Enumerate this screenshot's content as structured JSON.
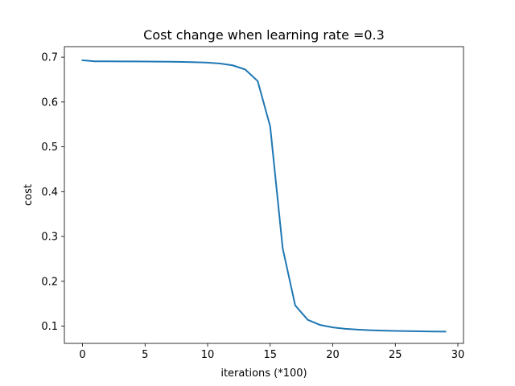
{
  "chart_data": {
    "type": "line",
    "title": "Cost change when learning rate =0.3",
    "xlabel": "iterations (*100)",
    "ylabel": "cost",
    "xlim": [
      -1.45,
      30.45
    ],
    "ylim": [
      0.0615,
      0.7235
    ],
    "x_ticks": [
      0,
      5,
      10,
      15,
      20,
      25,
      30
    ],
    "y_ticks": [
      0.1,
      0.2,
      0.3,
      0.4,
      0.5,
      0.6,
      0.7
    ],
    "grid": false,
    "line_color": "#1f77b4",
    "series": [
      {
        "x": [
          0,
          1,
          2,
          3,
          4,
          5,
          6,
          7,
          8,
          9,
          10,
          11,
          12,
          13,
          14,
          15,
          16,
          17,
          18,
          19,
          20,
          21,
          22,
          23,
          24,
          25,
          26,
          27,
          28,
          29
        ],
        "values": [
          0.693,
          0.6908,
          0.6907,
          0.6906,
          0.6905,
          0.6903,
          0.6901,
          0.6898,
          0.6894,
          0.6888,
          0.6878,
          0.6858,
          0.6818,
          0.6726,
          0.6467,
          0.5455,
          0.2735,
          0.1462,
          0.1141,
          0.1025,
          0.0971,
          0.0941,
          0.0922,
          0.0909,
          0.09,
          0.0893,
          0.0888,
          0.0884,
          0.088,
          0.0877
        ]
      }
    ]
  }
}
